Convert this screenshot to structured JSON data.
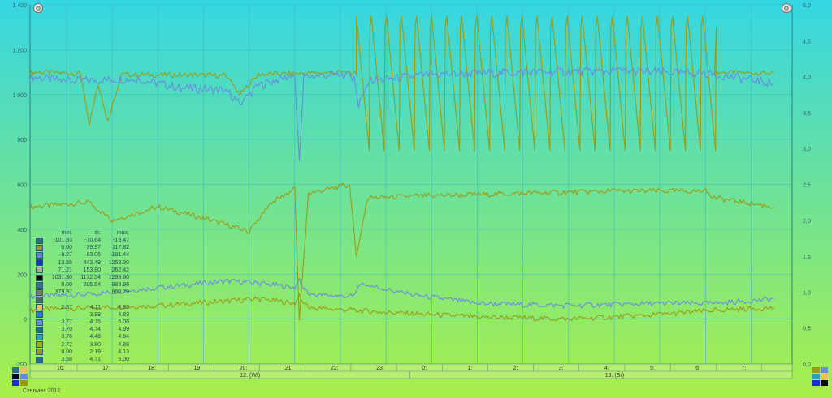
{
  "chart_data": {
    "type": "line",
    "title": "",
    "month_label": "Czerwiec 2012",
    "y_left": {
      "min": -200,
      "max": 1400,
      "ticks": [
        "-200",
        "0",
        "200",
        "400",
        "600",
        "800",
        "1 000",
        "1 200",
        "1 400"
      ]
    },
    "y_right": {
      "min": 0,
      "max": 5,
      "ticks": [
        "0,0",
        "0,5",
        "1,0",
        "1,5",
        "2,0",
        "2,5",
        "3,0",
        "3,5",
        "4,0",
        "4,5",
        "5,0"
      ]
    },
    "x": {
      "range_hours": [
        15.2,
        31.9
      ],
      "tick_labels": [
        "16:",
        "17:",
        "18:",
        "19:",
        "20:",
        "21:",
        "22:",
        "23:",
        "0:",
        "1:",
        "2:",
        "3:",
        "4:",
        "5:",
        "6:",
        "7:"
      ],
      "day_labels": [
        "12. (Wt)",
        "13. (Śr)"
      ]
    },
    "series": [
      {
        "name": "olive-upper",
        "color": "#9a9a14",
        "axis": "left",
        "points": [
          [
            15.2,
            1100
          ],
          [
            16.3,
            1095
          ],
          [
            16.5,
            870
          ],
          [
            16.7,
            1050
          ],
          [
            16.9,
            880
          ],
          [
            17.2,
            1090
          ],
          [
            19.5,
            1085
          ],
          [
            19.8,
            1000
          ],
          [
            20.2,
            1090
          ],
          [
            22.2,
            1100
          ],
          [
            22.35,
            1090
          ]
        ],
        "oscillation": {
          "start": 22.35,
          "end": 30.2,
          "high": 1350,
          "low": 750,
          "period": 0.33
        },
        "after": [
          [
            30.2,
            1100
          ],
          [
            31.5,
            1095
          ]
        ]
      },
      {
        "name": "blue-upper",
        "color": "#6a8ae0",
        "axis": "left",
        "points": [
          [
            15.2,
            1080
          ],
          [
            16.0,
            1060
          ],
          [
            17.5,
            1070
          ],
          [
            18.5,
            1030
          ],
          [
            19.5,
            1020
          ],
          [
            19.8,
            960
          ],
          [
            20.2,
            1040
          ],
          [
            21.0,
            1090
          ],
          [
            21.1,
            700
          ],
          [
            21.2,
            1080
          ],
          [
            22.0,
            1090
          ],
          [
            22.3,
            1080
          ],
          [
            22.4,
            950
          ],
          [
            22.6,
            1060
          ],
          [
            24.0,
            1090
          ],
          [
            26.0,
            1100
          ],
          [
            28.0,
            1105
          ],
          [
            30.0,
            1095
          ],
          [
            31.5,
            1050
          ]
        ]
      },
      {
        "name": "olive-middle",
        "color": "#9a9a14",
        "axis": "left",
        "points": [
          [
            15.2,
            500
          ],
          [
            16.5,
            520
          ],
          [
            17.0,
            440
          ],
          [
            18.0,
            500
          ],
          [
            19.0,
            450
          ],
          [
            20.0,
            390
          ],
          [
            20.5,
            520
          ],
          [
            21.0,
            580
          ],
          [
            21.1,
            0
          ],
          [
            21.3,
            560
          ],
          [
            22.0,
            590
          ],
          [
            22.2,
            600
          ],
          [
            22.35,
            280
          ],
          [
            22.6,
            540
          ],
          [
            24.0,
            550
          ],
          [
            26.0,
            560
          ],
          [
            28.0,
            570
          ],
          [
            30.0,
            570
          ],
          [
            30.2,
            540
          ],
          [
            31.5,
            500
          ]
        ]
      },
      {
        "name": "blue-lower",
        "color": "#6a8ae0",
        "axis": "left",
        "points": [
          [
            15.2,
            100
          ],
          [
            16.5,
            110
          ],
          [
            18.0,
            140
          ],
          [
            19.5,
            170
          ],
          [
            20.2,
            160
          ],
          [
            21.0,
            140
          ],
          [
            21.1,
            170
          ],
          [
            21.3,
            110
          ],
          [
            22.3,
            100
          ],
          [
            22.4,
            160
          ],
          [
            23.5,
            110
          ],
          [
            25.0,
            70
          ],
          [
            27.0,
            60
          ],
          [
            29.0,
            70
          ],
          [
            30.2,
            70
          ],
          [
            31.5,
            90
          ]
        ]
      },
      {
        "name": "olive-lower",
        "color": "#9a9a14",
        "axis": "left",
        "points": [
          [
            15.2,
            40
          ],
          [
            16.5,
            50
          ],
          [
            18.0,
            60
          ],
          [
            19.5,
            80
          ],
          [
            20.2,
            90
          ],
          [
            21.0,
            70
          ],
          [
            21.1,
            100
          ],
          [
            21.3,
            50
          ],
          [
            22.3,
            40
          ],
          [
            23.0,
            30
          ],
          [
            25.0,
            10
          ],
          [
            27.0,
            0
          ],
          [
            29.0,
            20
          ],
          [
            30.2,
            40
          ],
          [
            31.5,
            50
          ]
        ]
      }
    ],
    "legend": {
      "headers": [
        "min.",
        "śr.",
        "max."
      ],
      "rows": [
        {
          "color": "#2f6e7e",
          "min": "-101.83",
          "avg": "-70.64",
          "max": "-19.47"
        },
        {
          "color": "#9a9a14",
          "min": "0.00",
          "avg": "39.97",
          "max": "117.82"
        },
        {
          "color": "#6a8ae0",
          "min": "9.27",
          "avg": "83.06",
          "max": "191.44"
        },
        {
          "color": "#1b2fd0",
          "min": "13.55",
          "avg": "442.49",
          "max": "1253.30"
        },
        {
          "color": "#b9a7a7",
          "min": "71.21",
          "avg": "153.80",
          "max": "262.42"
        },
        {
          "color": "#0a0a0a",
          "min": "1031.30",
          "avg": "1172.54",
          "max": "1299.80"
        },
        {
          "color": "#3e6b8f",
          "min": "0.00",
          "avg": "205.54",
          "max": "983.96"
        },
        {
          "color": "#7d7a5d",
          "min": "379.97",
          "avg": "",
          "max": "860.79"
        },
        {
          "color": "#4d6a6a",
          "min": "",
          "avg": "",
          "max": ""
        },
        {
          "color": "#f0c060",
          "min": "2.87",
          "avg": "4.11",
          "max": "4.63"
        },
        {
          "color": "#2c7bd6",
          "min": "",
          "avg": "3.99",
          "max": "4.83"
        },
        {
          "color": "#6a8ae0",
          "min": "3.77",
          "avg": "4.75",
          "max": "5.00"
        },
        {
          "color": "#1a6f8a",
          "min": "3.70",
          "avg": "4.74",
          "max": "4.99"
        },
        {
          "color": "#2fa3a3",
          "min": "3.76",
          "avg": "4.48",
          "max": "4.84"
        },
        {
          "color": "#a8a820",
          "min": "2.72",
          "avg": "3.80",
          "max": "4.88"
        },
        {
          "color": "#9a9a14",
          "min": "0.00",
          "avg": "2.19",
          "max": "4.13"
        },
        {
          "color": "#2a6b9e",
          "min": "3.58",
          "avg": "4.71",
          "max": "5.00"
        }
      ]
    }
  },
  "colors": {
    "bg_top": "#35d6e3",
    "bg_bottom": "#a9ef4a",
    "grid": "#3fb8c8",
    "axis_text": "#2e5e66"
  }
}
